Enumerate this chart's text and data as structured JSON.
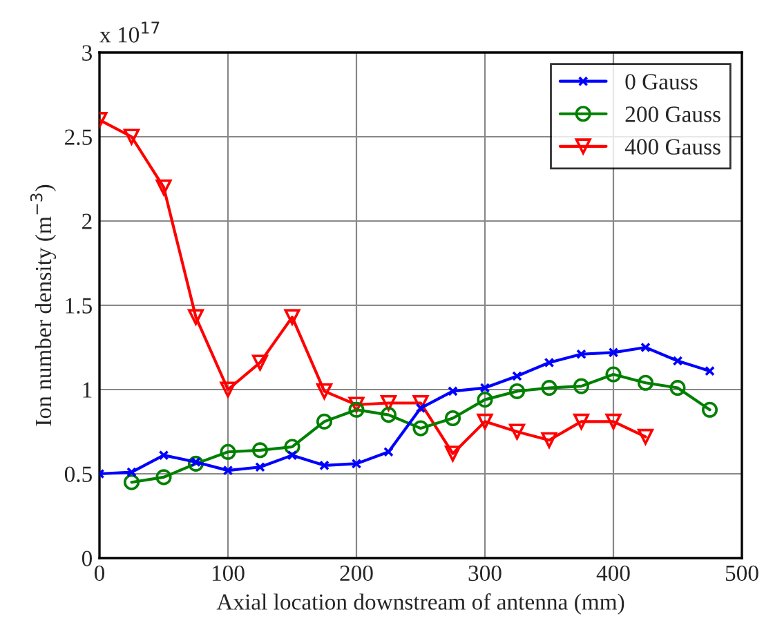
{
  "chart_data": {
    "type": "line",
    "xlabel": "Axial location downstream of antenna (mm)",
    "ylabel": "Ion number density (m$^{−3}$)",
    "annotations": [
      "x 10$^{17}$"
    ],
    "xlim": [
      0,
      500
    ],
    "xticks": [
      0,
      100,
      200,
      300,
      400,
      500
    ],
    "ylim": [
      0,
      3
    ],
    "yticks": [
      0,
      0.5,
      1,
      1.5,
      2,
      2.5,
      3
    ],
    "grid": true,
    "legend": "top right",
    "line_style": "solid",
    "series": [
      {
        "name": "0 Gauss",
        "color": "#0000ff",
        "marker": "cross",
        "x": [
          0,
          25,
          50,
          75,
          100,
          125,
          150,
          175,
          200,
          225,
          250,
          275,
          300,
          325,
          350,
          375,
          400,
          425,
          450,
          475
        ],
        "values": [
          0.5,
          0.51,
          0.61,
          0.57,
          0.52,
          0.54,
          0.61,
          0.55,
          0.56,
          0.63,
          0.89,
          0.99,
          1.01,
          1.08,
          1.16,
          1.21,
          1.22,
          1.25,
          1.17,
          1.11
        ]
      },
      {
        "name": "200 Gauss",
        "color": "#008000",
        "marker": "circle",
        "x": [
          25,
          50,
          75,
          100,
          125,
          150,
          175,
          200,
          225,
          250,
          275,
          300,
          325,
          350,
          375,
          400,
          425,
          450,
          475
        ],
        "values": [
          0.45,
          0.48,
          0.56,
          0.63,
          0.64,
          0.66,
          0.81,
          0.88,
          0.85,
          0.77,
          0.83,
          0.94,
          0.99,
          1.01,
          1.02,
          1.09,
          1.04,
          1.01,
          0.88
        ]
      },
      {
        "name": "400 Gauss",
        "color": "#ff0000",
        "marker": "triangle",
        "x": [
          0,
          25,
          50,
          75,
          100,
          125,
          150,
          175,
          200,
          225,
          250,
          275,
          300,
          325,
          350,
          375,
          400,
          425
        ],
        "values": [
          2.6,
          2.5,
          2.2,
          1.43,
          1.0,
          1.16,
          1.43,
          0.99,
          0.91,
          0.92,
          0.92,
          0.62,
          0.81,
          0.75,
          0.7,
          0.81,
          0.81,
          0.72
        ]
      }
    ]
  }
}
